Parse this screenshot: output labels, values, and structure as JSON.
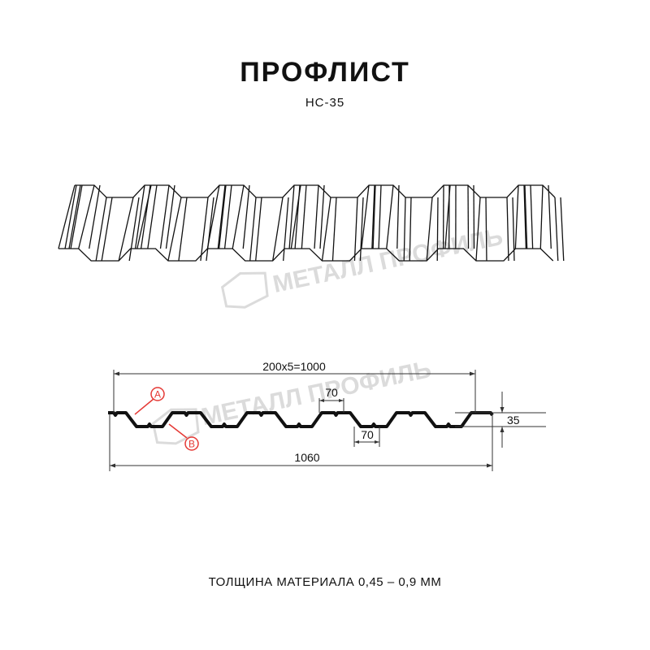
{
  "header": {
    "title": "ПРОФЛИСТ",
    "model": "НС-35"
  },
  "watermark": {
    "brand": "МЕТАЛЛ ПРОФИЛЬ"
  },
  "dimensions": {
    "pitch": "200х5=1000",
    "top_width": "70",
    "bottom_width": "70",
    "height": "35",
    "total_width": "1060"
  },
  "callouts": {
    "a": "A",
    "b": "B",
    "color": "#e53935"
  },
  "footer": {
    "thickness": "ТОЛЩИНА МАТЕРИАЛА 0,45 – 0,9 ММ"
  }
}
